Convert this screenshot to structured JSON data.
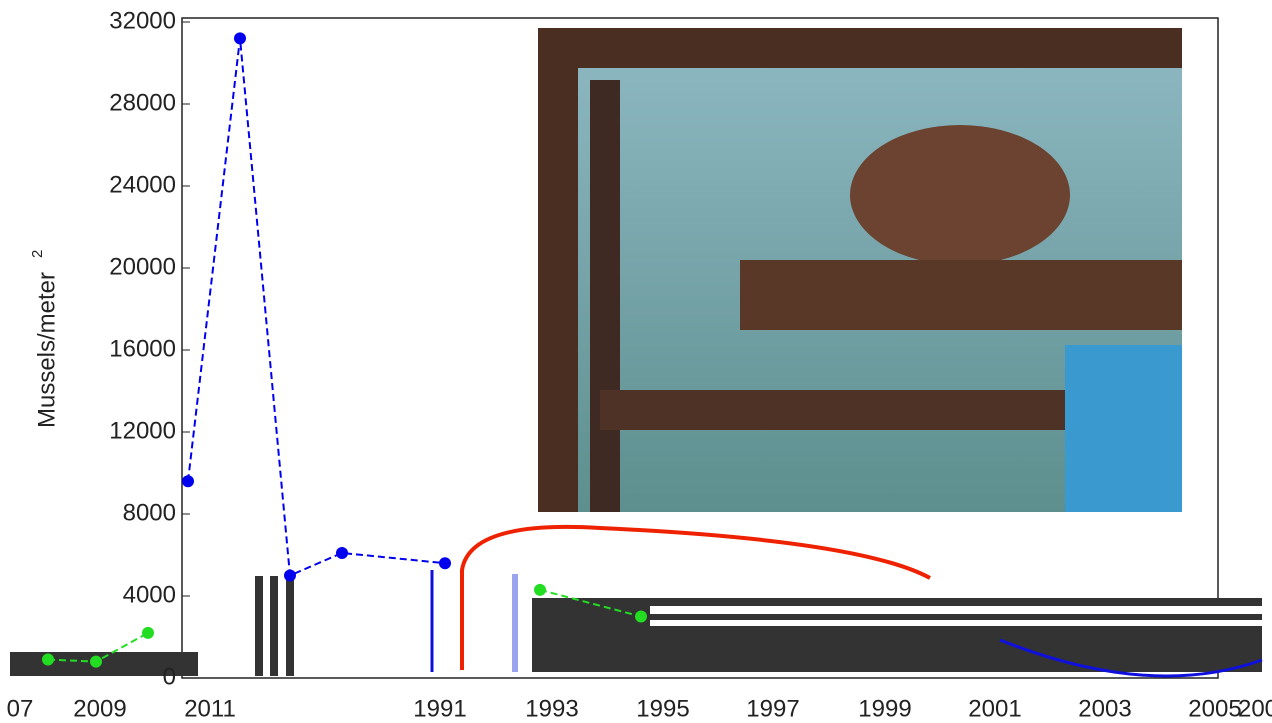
{
  "chart_data": {
    "type": "line",
    "y_label": "Mussels/meter",
    "y_label_sup": "2",
    "categories": [
      null,
      null,
      null,
      null,
      null,
      null,
      null,
      null,
      null,
      null
    ],
    "series": [
      {
        "name": null,
        "color": "#0000ee",
        "values": [
          null,
          null,
          null,
          9600,
          31200,
          5000,
          6100,
          5600,
          null,
          null
        ]
      },
      {
        "name": null,
        "color": "#22dd22",
        "values": [
          900,
          800,
          2200,
          null,
          null,
          null,
          null,
          null,
          4300,
          3000
        ]
      }
    ],
    "ylim": [
      0,
      32000
    ],
    "yticks": [
      0,
      4000,
      8000,
      12000,
      16000,
      20000,
      24000,
      28000,
      32000
    ],
    "xtick_labels": [
      "07",
      "2009",
      "2011",
      "1991",
      "1993",
      "1995",
      "1997",
      "1999",
      "2001",
      "2003",
      "2005",
      "200"
    ]
  }
}
